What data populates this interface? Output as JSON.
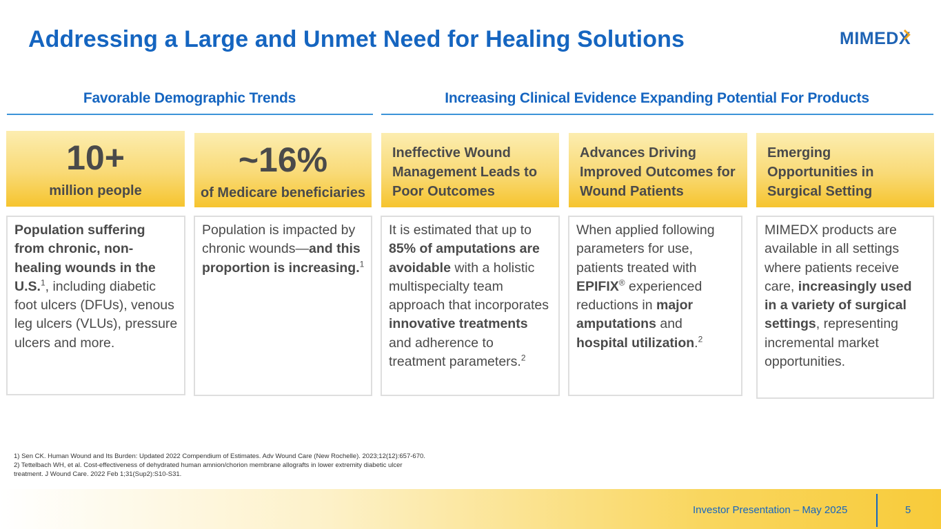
{
  "slide": {
    "title": "Addressing a Large and Unmet Need for Healing Solutions",
    "logo_text": "MIMEDX",
    "logo_main": "MIMED",
    "logo_x": "X"
  },
  "sections": [
    {
      "heading": "Favorable Demographic Trends"
    },
    {
      "heading": "Increasing Clinical Evidence Expanding Potential For Products"
    }
  ],
  "columns": [
    {
      "stat": "10+",
      "stat_label": "million people",
      "body": [
        {
          "t": "Population suffering from chronic, non-healing wounds in the U.S.",
          "bold": true
        },
        {
          "t": "1",
          "sup": true
        },
        {
          "t": ", including diabetic foot ulcers (DFUs), venous leg ulcers (VLUs), pressure ulcers and more."
        }
      ]
    },
    {
      "stat": "~16%",
      "stat_label": "of Medicare beneficiaries",
      "body": [
        {
          "t": "Population is impacted by chronic wounds—"
        },
        {
          "t": "and this proportion is increasing.",
          "bold": true
        },
        {
          "t": "1",
          "sup": true
        }
      ]
    },
    {
      "heading": "Ineffective Wound Management Leads to Poor Outcomes",
      "body": [
        {
          "t": "It is estimated that up to "
        },
        {
          "t": "85% of amputations are avoidable",
          "bold": true
        },
        {
          "t": " with a holistic multispecialty team approach that incorporates "
        },
        {
          "t": "innovative treatments",
          "bold": true
        },
        {
          "t": " and adherence to treatment parameters."
        },
        {
          "t": "2",
          "sup": true
        }
      ]
    },
    {
      "heading": "Advances Driving Improved Outcomes for Wound Patients",
      "body": [
        {
          "t": "When applied following parameters for use, patients treated with "
        },
        {
          "t": "EPIFIX",
          "bold": true
        },
        {
          "t": "®",
          "sup": true
        },
        {
          "t": " experienced reductions in "
        },
        {
          "t": "major amputations",
          "bold": true
        },
        {
          "t": " and "
        },
        {
          "t": "hospital utilization",
          "bold": true
        },
        {
          "t": "."
        },
        {
          "t": "2",
          "sup": true
        }
      ]
    },
    {
      "heading": "Emerging Opportunities in Surgical Setting",
      "body": [
        {
          "t": "MIMEDX products are available in all settings where patients receive care, "
        },
        {
          "t": "increasingly used in a variety of surgical settings",
          "bold": true
        },
        {
          "t": ", representing incremental market opportunities."
        }
      ]
    }
  ],
  "footnotes": [
    "1) Sen CK. Human Wound and Its Burden: Updated 2022 Compendium of Estimates. Adv Wound Care (New Rochelle). 2023;12(12):657-670.",
    "2) Tettelbach WH, et al. Cost-effectiveness of dehydrated human amnion/chorion membrane allografts in lower extremity diabetic ulcer",
    "treatment. J Wound Care. 2022 Feb 1;31(Sup2):S10-S31."
  ],
  "footer": {
    "text": "Investor Presentation – May 2025",
    "page": "5"
  },
  "colors": {
    "accent_blue": "#1565C0",
    "gold": "#F6C42E"
  }
}
